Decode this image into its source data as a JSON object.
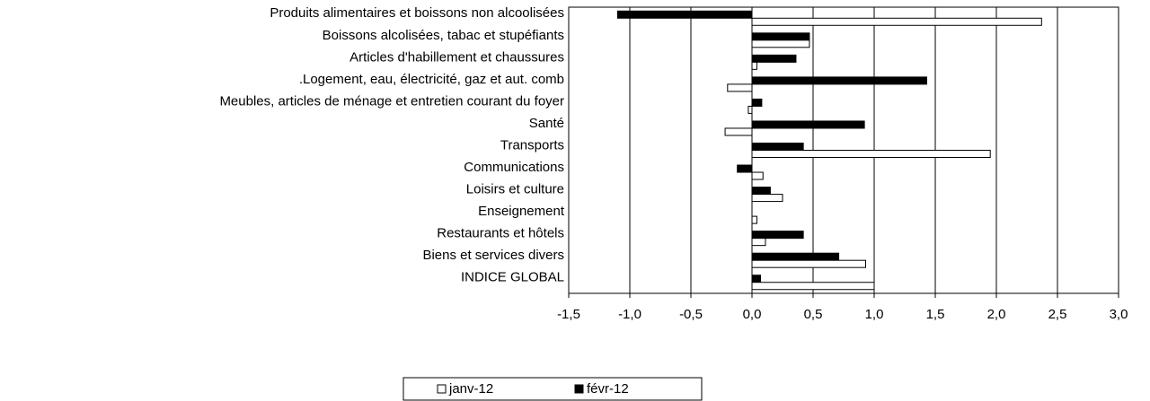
{
  "chart_data": {
    "type": "barh",
    "categories": [
      "Produits alimentaires et boissons non alcoolisées",
      "Boissons alcolisées, tabac et stupéfiants",
      "Articles d'habillement et chaussures",
      ".Logement, eau, électricité, gaz et aut. comb",
      "Meubles, articles de ménage et entretien courant du foyer",
      "Santé",
      "Transports",
      "Communications",
      "Loisirs et culture",
      "Enseignement",
      "Restaurants et hôtels",
      "Biens et services divers",
      "INDICE GLOBAL"
    ],
    "series": [
      {
        "name": "janv-12",
        "color": "#ffffff",
        "values": [
          2.37,
          0.47,
          0.04,
          -0.2,
          -0.03,
          -0.22,
          1.95,
          0.09,
          0.25,
          0.04,
          0.11,
          0.93,
          1.0
        ]
      },
      {
        "name": "févr-12",
        "color": "#000000",
        "values": [
          -1.1,
          0.47,
          0.36,
          1.43,
          0.08,
          0.92,
          0.42,
          -0.12,
          0.15,
          0.0,
          0.42,
          0.71,
          0.07
        ]
      }
    ],
    "xlim": [
      -1.5,
      3.0
    ],
    "xticks": [
      {
        "value": -1.5,
        "label": "-1,5"
      },
      {
        "value": -1.0,
        "label": "-1,0"
      },
      {
        "value": -0.5,
        "label": "-0,5"
      },
      {
        "value": 0.0,
        "label": "0,0"
      },
      {
        "value": 0.5,
        "label": "0,5"
      },
      {
        "value": 1.0,
        "label": "1,0"
      },
      {
        "value": 1.5,
        "label": "1,5"
      },
      {
        "value": 2.0,
        "label": "2,0"
      },
      {
        "value": 2.5,
        "label": "2,5"
      },
      {
        "value": 3.0,
        "label": "3,0"
      }
    ],
    "grid": true,
    "legend": "bottom"
  }
}
